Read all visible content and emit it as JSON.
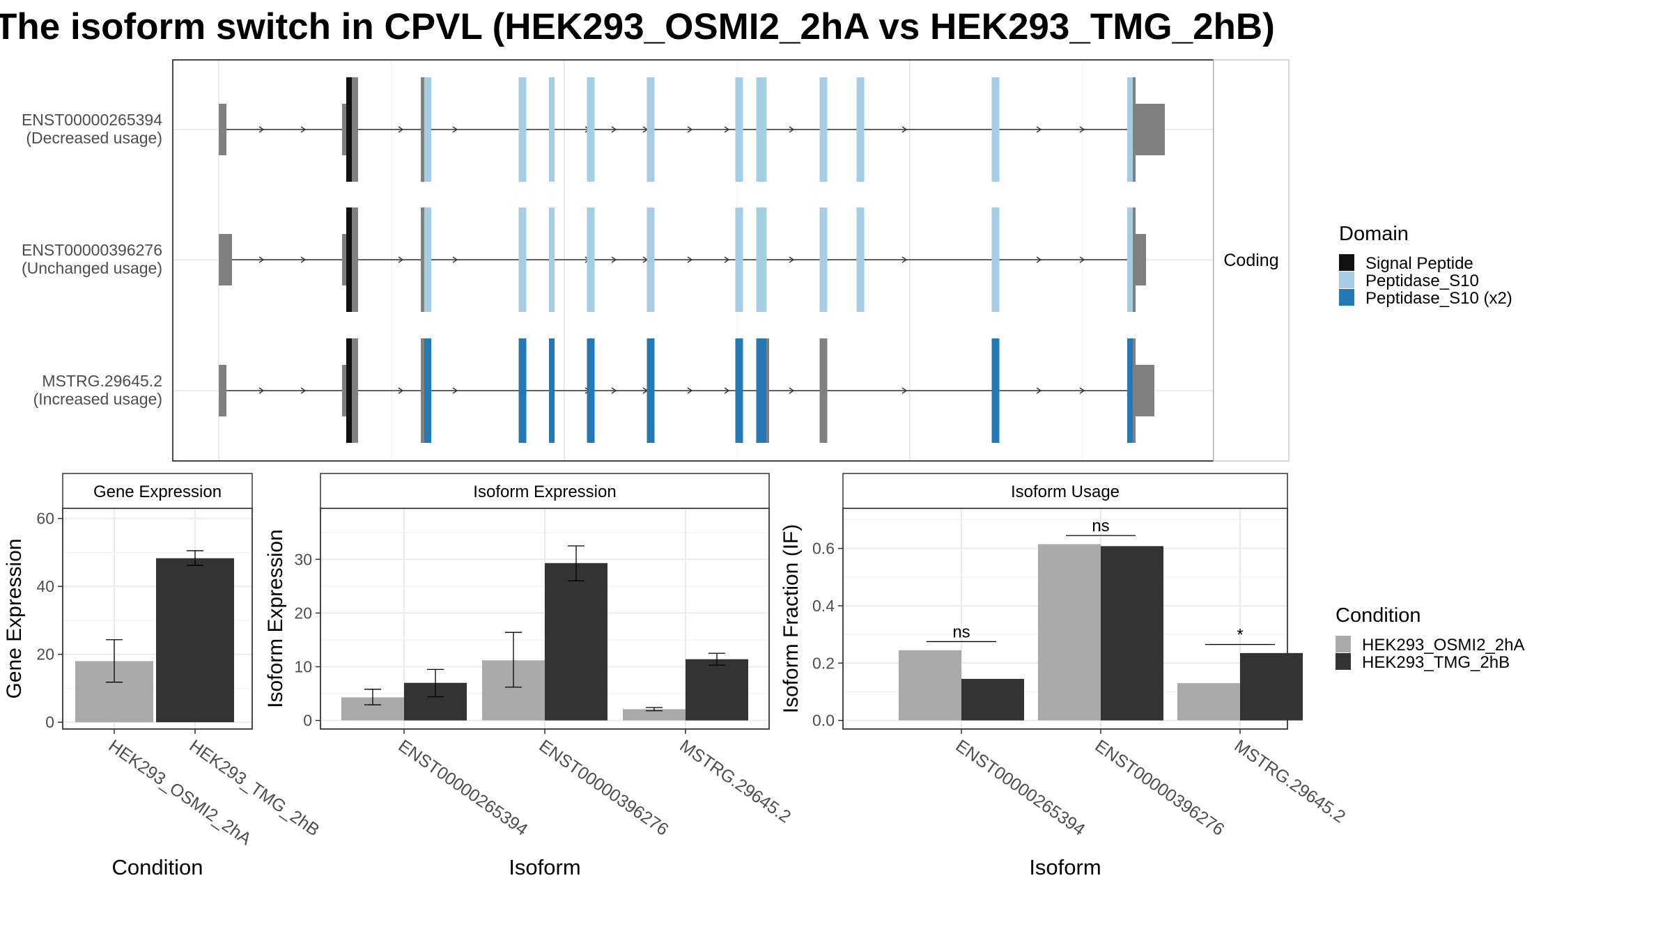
{
  "title": "The isoform switch in CPVL (HEK293_OSMI2_2hA vs HEK293_TMG_2hB)",
  "colors": {
    "signal_peptide": "#111111",
    "peptidase_s10": "#a6cde3",
    "peptidase_s10_x2": "#2479b5",
    "noncoding_exon": "#808080",
    "cond_a": "#aaaaaa",
    "cond_b": "#333333"
  },
  "structure": {
    "facet_label": "Coding",
    "transcripts": [
      {
        "id": "ENST00000265394",
        "note": "(Decreased usage)"
      },
      {
        "id": "ENST00000396276",
        "note": "(Unchanged usage)"
      },
      {
        "id": "MSTRG.29645.2",
        "note": "(Increased usage)"
      }
    ]
  },
  "legends": {
    "domain": {
      "title": "Domain",
      "items": [
        "Signal Peptide",
        "Peptidase_S10",
        "Peptidase_S10 (x2)"
      ]
    },
    "condition": {
      "title": "Condition",
      "items": [
        "HEK293_OSMI2_2hA",
        "HEK293_TMG_2hB"
      ]
    }
  },
  "chart_data": [
    {
      "type": "bar",
      "title": "Gene Expression",
      "xlabel": "Condition",
      "ylabel": "Gene Expression",
      "categories": [
        "HEK293_OSMI2_2hA",
        "HEK293_TMG_2hB"
      ],
      "values": [
        18,
        48.3
      ],
      "error_low": [
        11.8,
        46.2
      ],
      "error_high": [
        24.3,
        50.5
      ],
      "ylim": [
        -2,
        63
      ],
      "yticks": [
        0,
        20,
        40,
        60
      ]
    },
    {
      "type": "bar",
      "title": "Isoform Expression",
      "xlabel": "Isoform",
      "ylabel": "Isoform Expression",
      "categories": [
        "ENST00000265394",
        "ENST00000396276",
        "MSTRG.29645.2"
      ],
      "series": [
        {
          "name": "HEK293_OSMI2_2hA",
          "values": [
            4.3,
            11.2,
            2.1
          ],
          "error_low": [
            2.9,
            6.2,
            1.8
          ],
          "error_high": [
            5.8,
            16.4,
            2.4
          ]
        },
        {
          "name": "HEK293_TMG_2hB",
          "values": [
            7.0,
            29.3,
            11.4
          ],
          "error_low": [
            4.4,
            26.0,
            10.3
          ],
          "error_high": [
            9.5,
            32.5,
            12.5
          ]
        }
      ],
      "ylim": [
        -1.6,
        39.5
      ],
      "yticks": [
        0,
        10,
        20,
        30
      ]
    },
    {
      "type": "bar",
      "title": "Isoform Usage",
      "xlabel": "Isoform",
      "ylabel": "Isoform Fraction (IF)",
      "categories": [
        "ENST00000265394",
        "ENST00000396276",
        "MSTRG.29645.2"
      ],
      "series": [
        {
          "name": "HEK293_OSMI2_2hA",
          "values": [
            0.245,
            0.615,
            0.13
          ]
        },
        {
          "name": "HEK293_TMG_2hB",
          "values": [
            0.145,
            0.608,
            0.235
          ]
        }
      ],
      "significance": [
        "ns",
        "ns",
        "*"
      ],
      "significance_y": [
        0.275,
        0.645,
        0.265
      ],
      "ylim": [
        -0.03,
        0.74
      ],
      "yticks": [
        0.0,
        0.2,
        0.4,
        0.6
      ],
      "ytick_labels": [
        "0.0",
        "0.2",
        "0.4",
        "0.6"
      ]
    }
  ]
}
